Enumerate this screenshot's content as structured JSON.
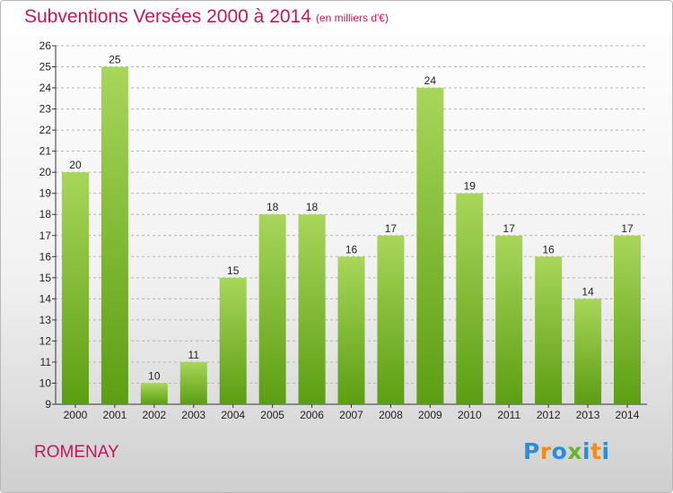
{
  "title": "Subventions Versées 2000 à 2014",
  "subtitle": "(en milliers d'€)",
  "commune": "ROMENAY",
  "logo": {
    "text": "Proxiti",
    "letters": [
      {
        "char": "P",
        "color": "#2a8fd8"
      },
      {
        "char": "r",
        "color": "#f28c1e"
      },
      {
        "char": "o",
        "color": "#2a8fd8"
      },
      {
        "char": "x",
        "color": "#6cb22f"
      },
      {
        "char": "i",
        "color": "#2a8fd8"
      },
      {
        "char": "t",
        "color": "#f28c1e"
      },
      {
        "char": "i",
        "color": "#2a8fd8"
      }
    ]
  },
  "colors": {
    "text_accent": "#c2185b",
    "bar_top": "#a8d65a",
    "bar_bottom": "#5c9e12",
    "grid": "#b4b4b4"
  },
  "chart_data": {
    "type": "bar",
    "title": "Subventions Versées 2000 à 2014",
    "subtitle": "(en milliers d'€)",
    "xlabel": "",
    "ylabel": "",
    "categories": [
      "2000",
      "2001",
      "2002",
      "2003",
      "2004",
      "2005",
      "2006",
      "2007",
      "2008",
      "2009",
      "2010",
      "2011",
      "2012",
      "2013",
      "2014"
    ],
    "values": [
      20,
      25,
      10,
      11,
      15,
      18,
      18,
      16,
      17,
      24,
      19,
      17,
      16,
      14,
      17
    ],
    "ylim": [
      9,
      26
    ],
    "yticks": [
      9,
      10,
      11,
      12,
      13,
      14,
      15,
      16,
      17,
      18,
      19,
      20,
      21,
      22,
      23,
      24,
      25,
      26
    ],
    "grid": true,
    "data_labels": true
  }
}
